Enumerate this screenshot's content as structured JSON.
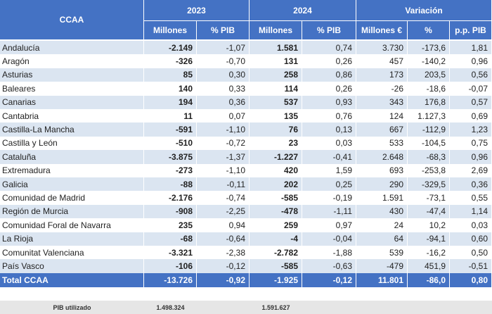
{
  "header": {
    "first": "CCAA",
    "groups": [
      "2023",
      "2024",
      "Variación"
    ],
    "columns": [
      "Millones",
      "% PIB",
      "Millones",
      "% PIB",
      "Millones €",
      "%",
      "p.p. PIB"
    ]
  },
  "table": {
    "rows": [
      [
        "Andalucía",
        "-2.149",
        "-1,07",
        "1.581",
        "0,74",
        "3.730",
        "-173,6",
        "1,81"
      ],
      [
        "Aragón",
        "-326",
        "-0,70",
        "131",
        "0,26",
        "457",
        "-140,2",
        "0,96"
      ],
      [
        "Asturias",
        "85",
        "0,30",
        "258",
        "0,86",
        "173",
        "203,5",
        "0,56"
      ],
      [
        "Baleares",
        "140",
        "0,33",
        "114",
        "0,26",
        "-26",
        "-18,6",
        "-0,07"
      ],
      [
        "Canarias",
        "194",
        "0,36",
        "537",
        "0,93",
        "343",
        "176,8",
        "0,57"
      ],
      [
        "Cantabria",
        "11",
        "0,07",
        "135",
        "0,76",
        "124",
        "1.127,3",
        "0,69"
      ],
      [
        "Castilla-La Mancha",
        "-591",
        "-1,10",
        "76",
        "0,13",
        "667",
        "-112,9",
        "1,23"
      ],
      [
        "Castilla y León",
        "-510",
        "-0,72",
        "23",
        "0,03",
        "533",
        "-104,5",
        "0,75"
      ],
      [
        "Cataluña",
        "-3.875",
        "-1,37",
        "-1.227",
        "-0,41",
        "2.648",
        "-68,3",
        "0,96"
      ],
      [
        "Extremadura",
        "-273",
        "-1,10",
        "420",
        "1,59",
        "693",
        "-253,8",
        "2,69"
      ],
      [
        "Galicia",
        "-88",
        "-0,11",
        "202",
        "0,25",
        "290",
        "-329,5",
        "0,36"
      ],
      [
        "Comunidad de Madrid",
        "-2.176",
        "-0,74",
        "-585",
        "-0,19",
        "1.591",
        "-73,1",
        "0,55"
      ],
      [
        "Región de Murcia",
        "-908",
        "-2,25",
        "-478",
        "-1,11",
        "430",
        "-47,4",
        "1,14"
      ],
      [
        "Comunidad Foral de Navarra",
        "235",
        "0,94",
        "259",
        "0,97",
        "24",
        "10,2",
        "0,03"
      ],
      [
        "La Rioja",
        "-68",
        "-0,64",
        "-4",
        "-0,04",
        "64",
        "-94,1",
        "0,60"
      ],
      [
        "Comunitat Valenciana",
        "-3.321",
        "-2,38",
        "-2.782",
        "-1,88",
        "539",
        "-16,2",
        "0,50"
      ],
      [
        "País Vasco",
        "-106",
        "-0,12",
        "-585",
        "-0,63",
        "-479",
        "451,9",
        "-0,51"
      ]
    ]
  },
  "total": [
    "Total CCAA",
    "-13.726",
    "-0,92",
    "-1.925",
    "-0,12",
    "11.801",
    "-86,0",
    "0,80"
  ],
  "footer": {
    "label": "PIB utilizado",
    "values": [
      "1.498.324",
      "1.591.627"
    ]
  }
}
